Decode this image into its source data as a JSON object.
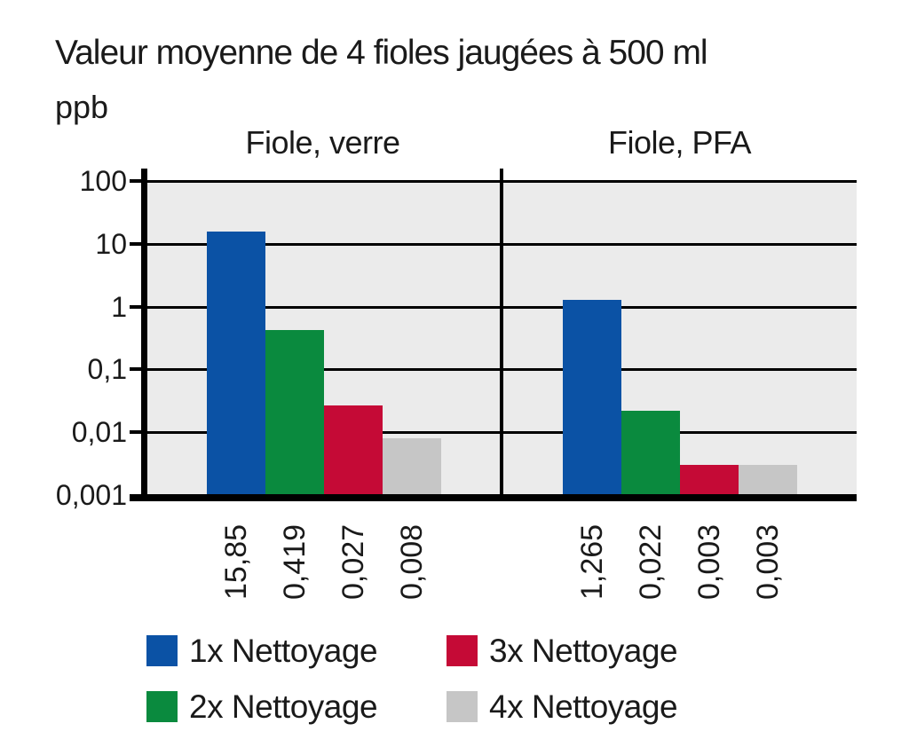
{
  "chart_data": {
    "type": "bar",
    "title": "Valeur moyenne de 4 fioles jaugées à 500 ml",
    "unit_label": "ppb",
    "y_scale": "log",
    "ylim": [
      0.001,
      100
    ],
    "grid": true,
    "legend_position": "bottom",
    "y_ticks": [
      {
        "value": 100,
        "label": "100"
      },
      {
        "value": 10,
        "label": "10"
      },
      {
        "value": 1,
        "label": "1"
      },
      {
        "value": 0.1,
        "label": "0,1"
      },
      {
        "value": 0.01,
        "label": "0,01"
      },
      {
        "value": 0.001,
        "label": "0,001"
      }
    ],
    "series": [
      {
        "name": "1x Nettoyage",
        "color": "#0b52a5"
      },
      {
        "name": "2x Nettoyage",
        "color": "#0a8a3e"
      },
      {
        "name": "3x Nettoyage",
        "color": "#c50a36"
      },
      {
        "name": "4x Nettoyage",
        "color": "#c6c6c6"
      }
    ],
    "panels": [
      {
        "title": "Fiole, verre",
        "values": [
          15.85,
          0.419,
          0.027,
          0.008
        ],
        "value_labels": [
          "15,85",
          "0,419",
          "0,027",
          "0,008"
        ]
      },
      {
        "title": "Fiole, PFA",
        "values": [
          1.265,
          0.022,
          0.003,
          0.003
        ],
        "value_labels": [
          "1,265",
          "0,022",
          "0,003",
          "0,003"
        ]
      }
    ]
  },
  "colors": {
    "plot_background": "#ebebeb",
    "axis": "#000000",
    "text": "#1a1a1a",
    "page_background": "#ffffff"
  }
}
